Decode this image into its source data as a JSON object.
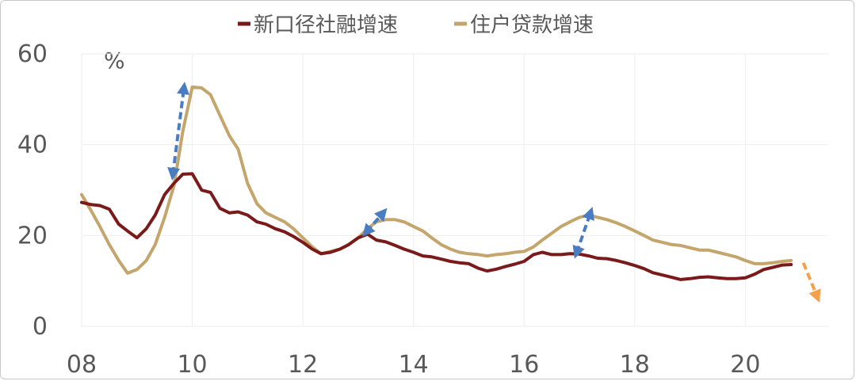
{
  "chart_data": {
    "type": "line",
    "unit_label": "%",
    "xlim": [
      2008,
      2021.5
    ],
    "ylim": [
      0,
      60
    ],
    "grid": true,
    "legend_position": "top-center",
    "x_ticks": [
      {
        "label": "08",
        "value": 2008
      },
      {
        "label": "10",
        "value": 2010
      },
      {
        "label": "12",
        "value": 2012
      },
      {
        "label": "14",
        "value": 2014
      },
      {
        "label": "16",
        "value": 2016
      },
      {
        "label": "18",
        "value": 2018
      },
      {
        "label": "20",
        "value": 2020
      }
    ],
    "y_ticks": [
      {
        "label": "0",
        "value": 0
      },
      {
        "label": "20",
        "value": 20
      },
      {
        "label": "40",
        "value": 40
      },
      {
        "label": "60",
        "value": 60
      }
    ],
    "series": [
      {
        "name": "新口径社融增速",
        "color": "#7b1a1a",
        "points": [
          [
            2008.0,
            27.3
          ],
          [
            2008.17,
            26.8
          ],
          [
            2008.33,
            26.6
          ],
          [
            2008.5,
            25.8
          ],
          [
            2008.67,
            22.5
          ],
          [
            2008.83,
            21.0
          ],
          [
            2009.0,
            19.5
          ],
          [
            2009.17,
            21.5
          ],
          [
            2009.33,
            24.5
          ],
          [
            2009.5,
            29.0
          ],
          [
            2009.67,
            31.5
          ],
          [
            2009.83,
            33.5
          ],
          [
            2010.0,
            33.6
          ],
          [
            2010.17,
            30.0
          ],
          [
            2010.33,
            29.5
          ],
          [
            2010.5,
            26.0
          ],
          [
            2010.67,
            25.0
          ],
          [
            2010.83,
            25.2
          ],
          [
            2011.0,
            24.5
          ],
          [
            2011.17,
            23.0
          ],
          [
            2011.33,
            22.5
          ],
          [
            2011.5,
            21.5
          ],
          [
            2011.67,
            20.8
          ],
          [
            2011.83,
            19.8
          ],
          [
            2012.0,
            18.5
          ],
          [
            2012.17,
            17.0
          ],
          [
            2012.33,
            16.0
          ],
          [
            2012.5,
            16.3
          ],
          [
            2012.67,
            17.0
          ],
          [
            2012.83,
            18.0
          ],
          [
            2013.0,
            19.5
          ],
          [
            2013.17,
            20.3
          ],
          [
            2013.33,
            19.0
          ],
          [
            2013.5,
            18.6
          ],
          [
            2013.67,
            17.8
          ],
          [
            2013.83,
            17.0
          ],
          [
            2014.0,
            16.3
          ],
          [
            2014.17,
            15.5
          ],
          [
            2014.33,
            15.3
          ],
          [
            2014.5,
            14.8
          ],
          [
            2014.67,
            14.3
          ],
          [
            2014.83,
            14.0
          ],
          [
            2015.0,
            13.8
          ],
          [
            2015.17,
            12.8
          ],
          [
            2015.33,
            12.2
          ],
          [
            2015.5,
            12.6
          ],
          [
            2015.67,
            13.2
          ],
          [
            2015.83,
            13.7
          ],
          [
            2016.0,
            14.3
          ],
          [
            2016.17,
            15.8
          ],
          [
            2016.33,
            16.3
          ],
          [
            2016.5,
            15.8
          ],
          [
            2016.67,
            15.8
          ],
          [
            2016.83,
            16.0
          ],
          [
            2017.0,
            15.9
          ],
          [
            2017.17,
            15.5
          ],
          [
            2017.33,
            15.0
          ],
          [
            2017.5,
            14.9
          ],
          [
            2017.67,
            14.5
          ],
          [
            2017.83,
            14.0
          ],
          [
            2018.0,
            13.4
          ],
          [
            2018.17,
            12.7
          ],
          [
            2018.33,
            11.8
          ],
          [
            2018.5,
            11.3
          ],
          [
            2018.67,
            10.8
          ],
          [
            2018.83,
            10.3
          ],
          [
            2019.0,
            10.5
          ],
          [
            2019.17,
            10.8
          ],
          [
            2019.33,
            10.9
          ],
          [
            2019.5,
            10.7
          ],
          [
            2019.67,
            10.5
          ],
          [
            2019.83,
            10.5
          ],
          [
            2020.0,
            10.7
          ],
          [
            2020.17,
            11.5
          ],
          [
            2020.33,
            12.5
          ],
          [
            2020.5,
            13.0
          ],
          [
            2020.67,
            13.5
          ],
          [
            2020.83,
            13.6
          ]
        ]
      },
      {
        "name": "住户贷款增速",
        "color": "#c4a56c",
        "points": [
          [
            2008.0,
            29.0
          ],
          [
            2008.17,
            25.5
          ],
          [
            2008.33,
            22.0
          ],
          [
            2008.5,
            18.0
          ],
          [
            2008.67,
            14.5
          ],
          [
            2008.83,
            11.7
          ],
          [
            2009.0,
            12.5
          ],
          [
            2009.17,
            14.5
          ],
          [
            2009.33,
            18.0
          ],
          [
            2009.5,
            24.0
          ],
          [
            2009.67,
            31.0
          ],
          [
            2009.83,
            43.0
          ],
          [
            2010.0,
            52.7
          ],
          [
            2010.17,
            52.5
          ],
          [
            2010.33,
            51.0
          ],
          [
            2010.5,
            46.5
          ],
          [
            2010.67,
            42.0
          ],
          [
            2010.83,
            39.0
          ],
          [
            2011.0,
            31.5
          ],
          [
            2011.17,
            27.0
          ],
          [
            2011.33,
            25.0
          ],
          [
            2011.5,
            24.0
          ],
          [
            2011.67,
            23.0
          ],
          [
            2011.83,
            21.5
          ],
          [
            2012.0,
            19.5
          ],
          [
            2012.17,
            17.5
          ],
          [
            2012.33,
            16.0
          ],
          [
            2012.5,
            16.5
          ],
          [
            2012.67,
            17.0
          ],
          [
            2012.83,
            18.0
          ],
          [
            2013.0,
            19.5
          ],
          [
            2013.17,
            21.5
          ],
          [
            2013.33,
            23.0
          ],
          [
            2013.5,
            23.5
          ],
          [
            2013.67,
            23.5
          ],
          [
            2013.83,
            23.0
          ],
          [
            2014.0,
            22.0
          ],
          [
            2014.17,
            21.0
          ],
          [
            2014.33,
            19.5
          ],
          [
            2014.5,
            18.0
          ],
          [
            2014.67,
            17.0
          ],
          [
            2014.83,
            16.3
          ],
          [
            2015.0,
            16.0
          ],
          [
            2015.17,
            15.8
          ],
          [
            2015.33,
            15.5
          ],
          [
            2015.5,
            15.8
          ],
          [
            2015.67,
            16.0
          ],
          [
            2015.83,
            16.3
          ],
          [
            2016.0,
            16.5
          ],
          [
            2016.17,
            17.5
          ],
          [
            2016.33,
            19.0
          ],
          [
            2016.5,
            20.5
          ],
          [
            2016.67,
            22.0
          ],
          [
            2016.83,
            23.0
          ],
          [
            2017.0,
            24.0
          ],
          [
            2017.17,
            24.5
          ],
          [
            2017.33,
            24.0
          ],
          [
            2017.5,
            23.5
          ],
          [
            2017.67,
            22.8
          ],
          [
            2017.83,
            22.0
          ],
          [
            2018.0,
            21.0
          ],
          [
            2018.17,
            20.0
          ],
          [
            2018.33,
            19.0
          ],
          [
            2018.5,
            18.5
          ],
          [
            2018.67,
            18.0
          ],
          [
            2018.83,
            17.8
          ],
          [
            2019.0,
            17.3
          ],
          [
            2019.17,
            16.8
          ],
          [
            2019.33,
            16.8
          ],
          [
            2019.5,
            16.3
          ],
          [
            2019.67,
            15.8
          ],
          [
            2019.83,
            15.3
          ],
          [
            2020.0,
            14.5
          ],
          [
            2020.17,
            13.8
          ],
          [
            2020.33,
            13.8
          ],
          [
            2020.5,
            14.0
          ],
          [
            2020.67,
            14.3
          ],
          [
            2020.83,
            14.5
          ]
        ]
      }
    ],
    "annotations": [
      {
        "type": "double-arrow",
        "color": "#4a7cc2",
        "from": [
          2009.65,
          33.5
        ],
        "to": [
          2009.85,
          52.5
        ]
      },
      {
        "type": "double-arrow",
        "color": "#4a7cc2",
        "from": [
          2013.15,
          20.8
        ],
        "to": [
          2013.45,
          25.0
        ]
      },
      {
        "type": "double-arrow",
        "color": "#4a7cc2",
        "from": [
          2016.95,
          16.2
        ],
        "to": [
          2017.2,
          25.0
        ]
      },
      {
        "type": "arrow",
        "color": "#f5a04a",
        "from": [
          2021.05,
          14.0
        ],
        "to": [
          2021.3,
          6.5
        ]
      }
    ]
  }
}
